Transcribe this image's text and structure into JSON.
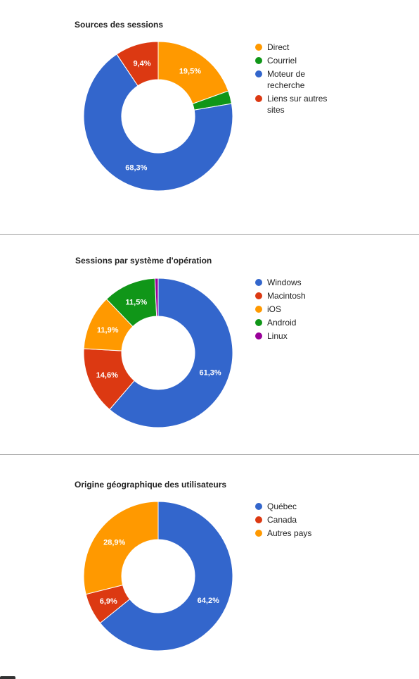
{
  "chart_data": [
    {
      "type": "pie",
      "donut": true,
      "title": "Sources des sessions",
      "legend_position": "right",
      "slices": [
        {
          "label": "Direct",
          "value": 19.5,
          "value_label": "19,5%",
          "color": "#ff9900"
        },
        {
          "label": "Courriel",
          "value": 2.8,
          "value_label": "",
          "color": "#109618"
        },
        {
          "label": "Moteur de recherche",
          "value": 68.3,
          "value_label": "68,3%",
          "color": "#3366cc"
        },
        {
          "label": "Liens sur autres sites",
          "value": 9.4,
          "value_label": "9,4%",
          "color": "#dc3912"
        }
      ]
    },
    {
      "type": "pie",
      "donut": true,
      "title": "Sessions par système d'opération",
      "legend_position": "right",
      "slices": [
        {
          "label": "Windows",
          "value": 61.3,
          "value_label": "61,3%",
          "color": "#3366cc"
        },
        {
          "label": "Macintosh",
          "value": 14.6,
          "value_label": "14,6%",
          "color": "#dc3912"
        },
        {
          "label": "iOS",
          "value": 11.9,
          "value_label": "11,9%",
          "color": "#ff9900"
        },
        {
          "label": "Android",
          "value": 11.5,
          "value_label": "11,5%",
          "color": "#109618"
        },
        {
          "label": "Linux",
          "value": 0.7,
          "value_label": "",
          "color": "#990099"
        }
      ]
    },
    {
      "type": "pie",
      "donut": true,
      "title": "Origine géographique des utilisateurs",
      "legend_position": "right",
      "slices": [
        {
          "label": "Québec",
          "value": 64.2,
          "value_label": "64,2%",
          "color": "#3366cc"
        },
        {
          "label": "Canada",
          "value": 6.9,
          "value_label": "6,9%",
          "color": "#dc3912"
        },
        {
          "label": "Autres pays",
          "value": 28.9,
          "value_label": "28,9%",
          "color": "#ff9900"
        }
      ]
    }
  ]
}
